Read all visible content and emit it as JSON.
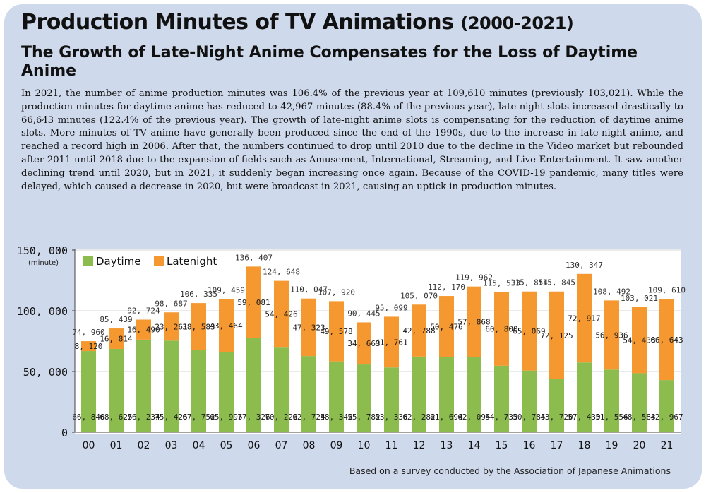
{
  "header": {
    "title_main": "Production Minutes of TV Animations",
    "title_years": "(2000-2021)",
    "subtitle": "The Growth of Late-Night Anime Compensates for the Loss of Daytime Anime",
    "body": "In 2021, the number of anime production minutes was 106.4% of the previous year at 109,610 minutes (previously 103,021). While the production minutes for daytime anime has reduced to 42,967 minutes (88.4% of the previous year), late-night slots increased drastically to 66,643 minutes (122.4% of the previous year). The growth of late-night anime slots is compensating for the reduction of daytime anime slots. More minutes of TV anime have generally been produced since the end of the 1990s, due to the increase in late-night anime, and reached a record high in 2006. After that, the numbers continued to drop until 2010 due to the decline in the Video market but rebounded after 2011 until 2018 due to the expansion of fields such as Amusement, International, Streaming, and Live Entertainment. It saw another declining trend until 2020, but in 2021, it suddenly began increasing once again. Because of the COVID-19 pandemic, many titles were delayed, which caused a decrease in 2020, but were broadcast in 2021, causing an uptick in production minutes."
  },
  "footer": {
    "source": "Based on a survey conducted by the Association of Japanese Animations"
  },
  "colors": {
    "daytime": "#8cbb4e",
    "latenight": "#f4982f",
    "total_label": "#333333",
    "inner_label": "#1a1a1a"
  },
  "chart_data": {
    "type": "bar",
    "stacked": true,
    "title": "Production Minutes of TV Animations (2000-2021)",
    "ylabel": "(minute)",
    "ylim": [
      0,
      150000
    ],
    "yticks": [
      0,
      50000,
      100000,
      150000
    ],
    "ytick_labels": [
      "0",
      "50, 000",
      "100, 000",
      "150, 000"
    ],
    "legend": "top-left",
    "categories": [
      "00",
      "01",
      "02",
      "03",
      "04",
      "05",
      "06",
      "07",
      "08",
      "09",
      "10",
      "11",
      "12",
      "13",
      "14",
      "15",
      "16",
      "17",
      "18",
      "19",
      "20",
      "21"
    ],
    "series": [
      {
        "name": "Daytime",
        "color": "#8cbb4e",
        "values": [
          66840,
          68625,
          76234,
          75426,
          67752,
          65995,
          77326,
          70222,
          62724,
          58342,
          55782,
          53338,
          62282,
          61694,
          62094,
          54733,
          50785,
          43720,
          57430,
          51556,
          48583,
          42967
        ],
        "labels": [
          "66, 840",
          "68, 625",
          "76, 234",
          "75, 426",
          "67, 752",
          "65, 995",
          "77, 326",
          "70, 222",
          "62, 724",
          "58, 342",
          "55, 782",
          "53, 338",
          "62, 282",
          "61, 694",
          "62, 094",
          "54, 733",
          "50, 785",
          "43, 720",
          "57, 430",
          "51, 556",
          "48, 583",
          "42, 967"
        ]
      },
      {
        "name": "Latenight",
        "color": "#f4982f",
        "values": [
          8120,
          16814,
          16490,
          23261,
          38583,
          43464,
          59081,
          54426,
          47323,
          49578,
          34663,
          41761,
          42788,
          50476,
          57868,
          60800,
          65069,
          72125,
          72917,
          56936,
          54438,
          66643
        ],
        "labels": [
          "8, 120",
          "16, 814",
          "16, 490",
          "23, 261",
          "38, 583",
          "43, 464",
          "59, 081",
          "54, 426",
          "47, 323",
          "49, 578",
          "34, 663",
          "41, 761",
          "42, 788",
          "50, 476",
          "57, 868",
          "60, 800",
          "65, 069",
          "72, 125",
          "72, 917",
          "56, 936",
          "54, 438",
          "66, 643"
        ]
      }
    ],
    "totals": [
      74960,
      85439,
      92724,
      98687,
      106335,
      109459,
      136407,
      124648,
      110047,
      107920,
      90445,
      95099,
      105070,
      112170,
      119962,
      115533,
      115854,
      115845,
      130347,
      108492,
      103021,
      109610
    ],
    "total_labels": [
      "74, 960",
      "85, 439",
      "92, 724",
      "98, 687",
      "106, 335",
      "109, 459",
      "136, 407",
      "124, 648",
      "110, 047",
      "107, 920",
      "90, 445",
      "95, 099",
      "105, 070",
      "112, 170",
      "119, 962",
      "115, 533",
      "115, 854",
      "115, 845",
      "130, 347",
      "108, 492",
      "103, 021",
      "109, 610"
    ]
  }
}
